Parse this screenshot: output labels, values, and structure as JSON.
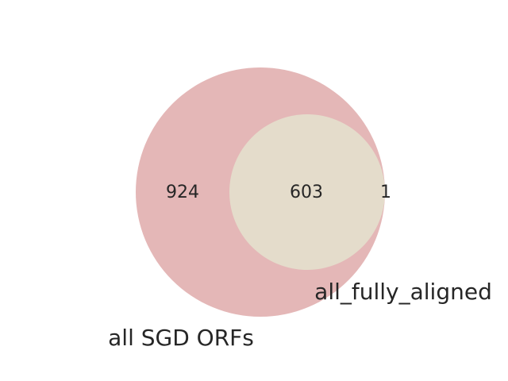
{
  "venn": {
    "sets": [
      {
        "name": "all SGD ORFs",
        "color": "#e4b7b7"
      },
      {
        "name": "all_fully_aligned",
        "color": "#e4dccb"
      }
    ],
    "regions": {
      "only_a": "924",
      "both": "603",
      "only_b": "1"
    }
  }
}
